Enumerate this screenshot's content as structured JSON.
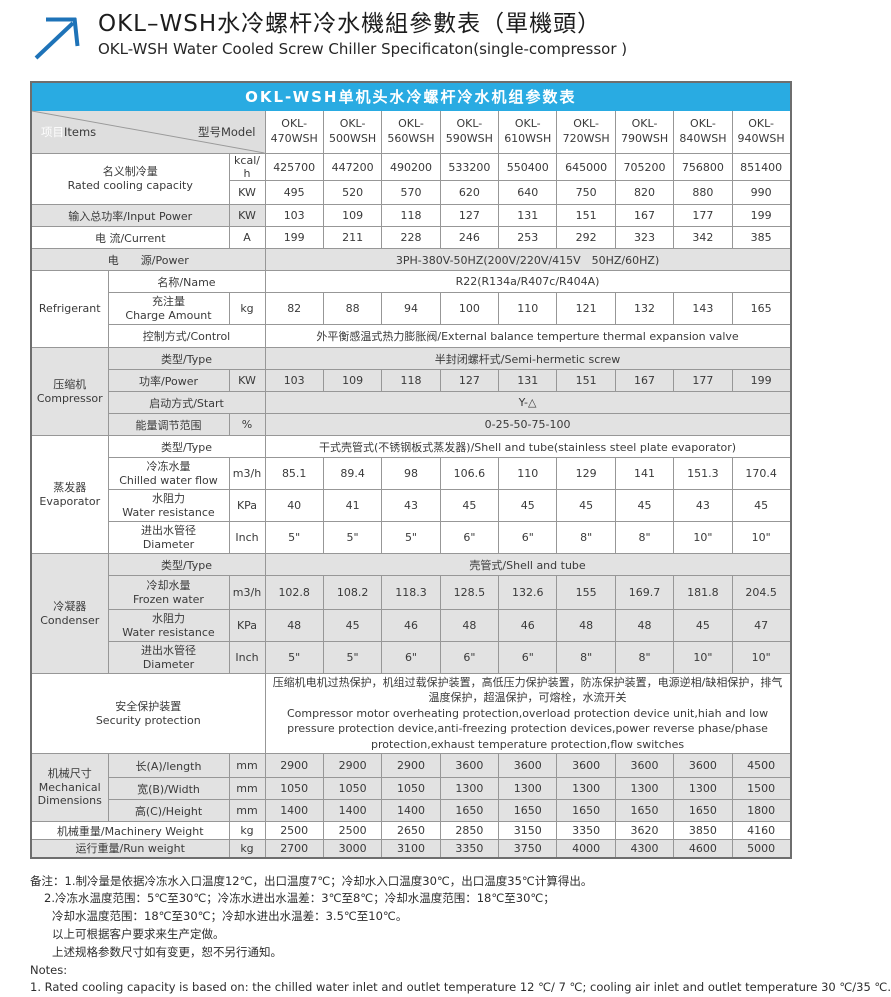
{
  "page": {
    "title_zh": "OKL–WSH水冷螺杆冷水機組參數表（單機頭）",
    "title_en": "OKL-WSH Water Cooled Screw Chiller Specificaton(single-compressor )"
  },
  "colors": {
    "banner_blue": "#29abe2",
    "row_grey": "#e2e2e2",
    "logo_blue": "#1e73b8"
  },
  "table": {
    "banner": "OKL-WSH单机头水冷螺杆冷水机组参数表",
    "corner_items_zh": "项目",
    "corner_items_en": "Items",
    "corner_model": "型号Model",
    "models": [
      "OKL-\n470WSH",
      "OKL-\n500WSH",
      "OKL-\n560WSH",
      "OKL-\n590WSH",
      "OKL-\n610WSH",
      "OKL-\n720WSH",
      "OKL-\n790WSH",
      "OKL-\n840WSH",
      "OKL-\n940WSH"
    ],
    "rated": {
      "label": "名义制冷量\nRated cooling capacity",
      "unit_kcal": "kcal/h",
      "kcal": [
        "425700",
        "447200",
        "490200",
        "533200",
        "550400",
        "645000",
        "705200",
        "756800",
        "851400"
      ],
      "unit_kw": "KW",
      "kw": [
        "495",
        "520",
        "570",
        "620",
        "640",
        "750",
        "820",
        "880",
        "990"
      ]
    },
    "input_power": {
      "label": "输入总功率/Input Power",
      "unit": "KW",
      "values": [
        "103",
        "109",
        "118",
        "127",
        "131",
        "151",
        "167",
        "177",
        "199"
      ]
    },
    "current": {
      "label": "电 流/Current",
      "unit": "A",
      "values": [
        "199",
        "211",
        "228",
        "246",
        "253",
        "292",
        "323",
        "342",
        "385"
      ]
    },
    "power_supply": {
      "label": "电　　源/Power",
      "value": "3PH-380V-50HZ(200V/220V/415V　50HZ/60HZ)"
    },
    "refrigerant": {
      "group": "Refrigerant",
      "name_label": "名称/Name",
      "name_value": "R22(R134a/R407c/R404A)",
      "charge_label": "充注量\nCharge Amount",
      "charge_unit": "kg",
      "charge": [
        "82",
        "88",
        "94",
        "100",
        "110",
        "121",
        "132",
        "143",
        "165"
      ],
      "control_label": "控制方式/Control",
      "control_value": "外平衡感温式热力膨胀阀/External balance temperture thermal expansion valve"
    },
    "compressor": {
      "group": "压缩机\nCompressor",
      "type_label": "类型/Type",
      "type_value": "半封闭螺杆式/Semi-hermetic screw",
      "power_label": "功率/Power",
      "power_unit": "KW",
      "power": [
        "103",
        "109",
        "118",
        "127",
        "131",
        "151",
        "167",
        "177",
        "199"
      ],
      "start_label": "启动方式/Start",
      "start_value": "Y-△",
      "energy_label": "能量调节范围",
      "energy_unit": "%",
      "energy_value": "0-25-50-75-100"
    },
    "evaporator": {
      "group": "蒸发器\nEvaporator",
      "type_label": "类型/Type",
      "type_value": "干式壳管式(不锈钢板式蒸发器)/Shell and tube(stainless steel plate evaporator)",
      "flow_label": "冷冻水量\nChilled water flow",
      "flow_unit": "m3/h",
      "flow": [
        "85.1",
        "89.4",
        "98",
        "106.6",
        "110",
        "129",
        "141",
        "151.3",
        "170.4"
      ],
      "resist_label": "水阻力\nWater resistance",
      "resist_unit": "KPa",
      "resist": [
        "40",
        "41",
        "43",
        "45",
        "45",
        "45",
        "45",
        "43",
        "45"
      ],
      "dia_label": "进出水管径\nDiameter",
      "dia_unit": "Inch",
      "dia": [
        "5\"",
        "5\"",
        "5\"",
        "6\"",
        "6\"",
        "8\"",
        "8\"",
        "10\"",
        "10\""
      ]
    },
    "condenser": {
      "group": "冷凝器\nCondenser",
      "type_label": "类型/Type",
      "type_value": "壳管式/Shell and tube",
      "flow_label": "冷却水量\nFrozen water",
      "flow_unit": "m3/h",
      "flow": [
        "102.8",
        "108.2",
        "118.3",
        "128.5",
        "132.6",
        "155",
        "169.7",
        "181.8",
        "204.5"
      ],
      "resist_label": "水阻力\nWater resistance",
      "resist_unit": "KPa",
      "resist": [
        "48",
        "45",
        "46",
        "48",
        "46",
        "48",
        "48",
        "45",
        "47"
      ],
      "dia_label": "进出水管径\nDiameter",
      "dia_unit": "Inch",
      "dia": [
        "5\"",
        "5\"",
        "6\"",
        "6\"",
        "6\"",
        "8\"",
        "8\"",
        "10\"",
        "10\""
      ]
    },
    "security": {
      "label": "安全保护装置\nSecurity protection",
      "value_zh": "压缩机电机过热保护，机组过载保护装置，高低压力保护装置，防冻保护装置，电源逆相/缺相保护，排气温度保护，超温保护，可熔栓，水流开关",
      "value_en": "Compressor motor overheating protection,overload protection device unit,hiah and low pressure protection device,anti-freezing protection devices,power reverse phase/phase protection,exhaust temperature protection,flow switches"
    },
    "dimensions": {
      "group": "机械尺寸\nMechanical\nDimensions",
      "length_label": "长(A)/length",
      "length_unit": "mm",
      "length": [
        "2900",
        "2900",
        "2900",
        "3600",
        "3600",
        "3600",
        "3600",
        "3600",
        "4500"
      ],
      "width_label": "宽(B)/Width",
      "width_unit": "mm",
      "width": [
        "1050",
        "1050",
        "1050",
        "1300",
        "1300",
        "1300",
        "1300",
        "1300",
        "1500"
      ],
      "height_label": "高(C)/Height",
      "height_unit": "mm",
      "height": [
        "1400",
        "1400",
        "1400",
        "1650",
        "1650",
        "1650",
        "1650",
        "1650",
        "1800"
      ]
    },
    "machinery_weight": {
      "label": "机械重量/Machinery Weight",
      "unit": "kg",
      "values": [
        "2500",
        "2500",
        "2650",
        "2850",
        "3150",
        "3350",
        "3620",
        "3850",
        "4160"
      ]
    },
    "run_weight": {
      "label": "运行重量/Run weight",
      "unit": "kg",
      "values": [
        "2700",
        "3000",
        "3100",
        "3350",
        "3750",
        "4000",
        "4300",
        "4600",
        "5000"
      ]
    }
  },
  "notes": {
    "zh_1": "备注：1.制冷量是依据冷冻水入口温度12℃，出口温度7℃；冷却水入口温度30℃，出口温度35℃计算得出。",
    "zh_2": "2.冷冻水温度范围：5℃至30℃；冷冻水进出水温差：3℃至8℃；冷却水温度范围：18℃至30℃；",
    "zh_3": "冷却水温度范围：18℃至30℃；冷却水进出水温差：3.5℃至10℃。",
    "zh_4": "以上可根据客户要求来生产定做。",
    "zh_5": "上述规格参数尺寸如有变更，恕不另行通知。",
    "en_title": "Notes:",
    "en_1": "1. Rated cooling capacity is based on: the chilled water inlet and outlet temperature 12 ℃/ 7 ℃; cooling air inlet and outlet temperature 30 ℃/35 ℃."
  }
}
